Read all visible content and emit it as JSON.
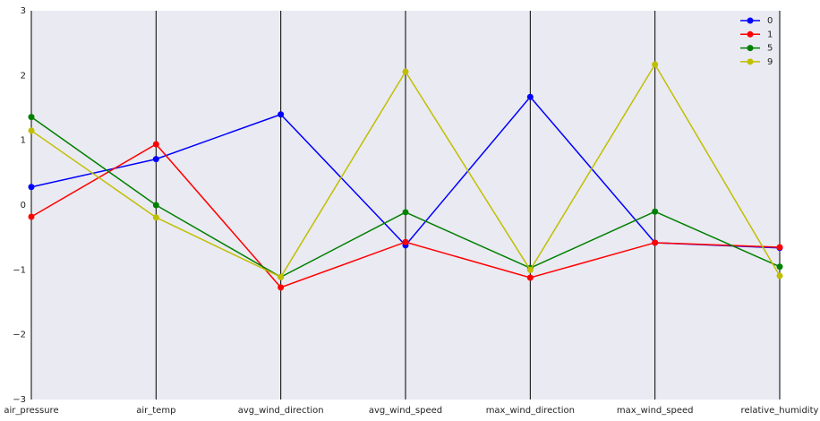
{
  "chart_data": {
    "type": "line",
    "categories": [
      "air_pressure",
      "air_temp",
      "avg_wind_direction",
      "avg_wind_speed",
      "max_wind_direction",
      "max_wind_speed",
      "relative_humidity"
    ],
    "series": [
      {
        "name": "0",
        "color": "#0000ff",
        "values": [
          0.28,
          0.71,
          1.4,
          -0.62,
          1.67,
          -0.58,
          -0.66
        ]
      },
      {
        "name": "1",
        "color": "#ff0000",
        "values": [
          -0.18,
          0.94,
          -1.27,
          -0.57,
          -1.12,
          -0.58,
          -0.65
        ]
      },
      {
        "name": "5",
        "color": "#008000",
        "values": [
          1.36,
          0.0,
          -1.11,
          -0.11,
          -0.97,
          -0.1,
          -0.95
        ]
      },
      {
        "name": "9",
        "color": "#bfbf00",
        "values": [
          1.15,
          -0.19,
          -1.11,
          2.06,
          -1.0,
          2.17,
          -1.09
        ]
      }
    ],
    "ylim": [
      -3,
      3
    ],
    "yticks": [
      {
        "value": -3,
        "label": "−3"
      },
      {
        "value": -2,
        "label": "−2"
      },
      {
        "value": -1,
        "label": "−1"
      },
      0,
      1,
      2,
      3
    ],
    "legend": "upper right",
    "background": "#eaeaf2",
    "axis_color": "#000000"
  }
}
